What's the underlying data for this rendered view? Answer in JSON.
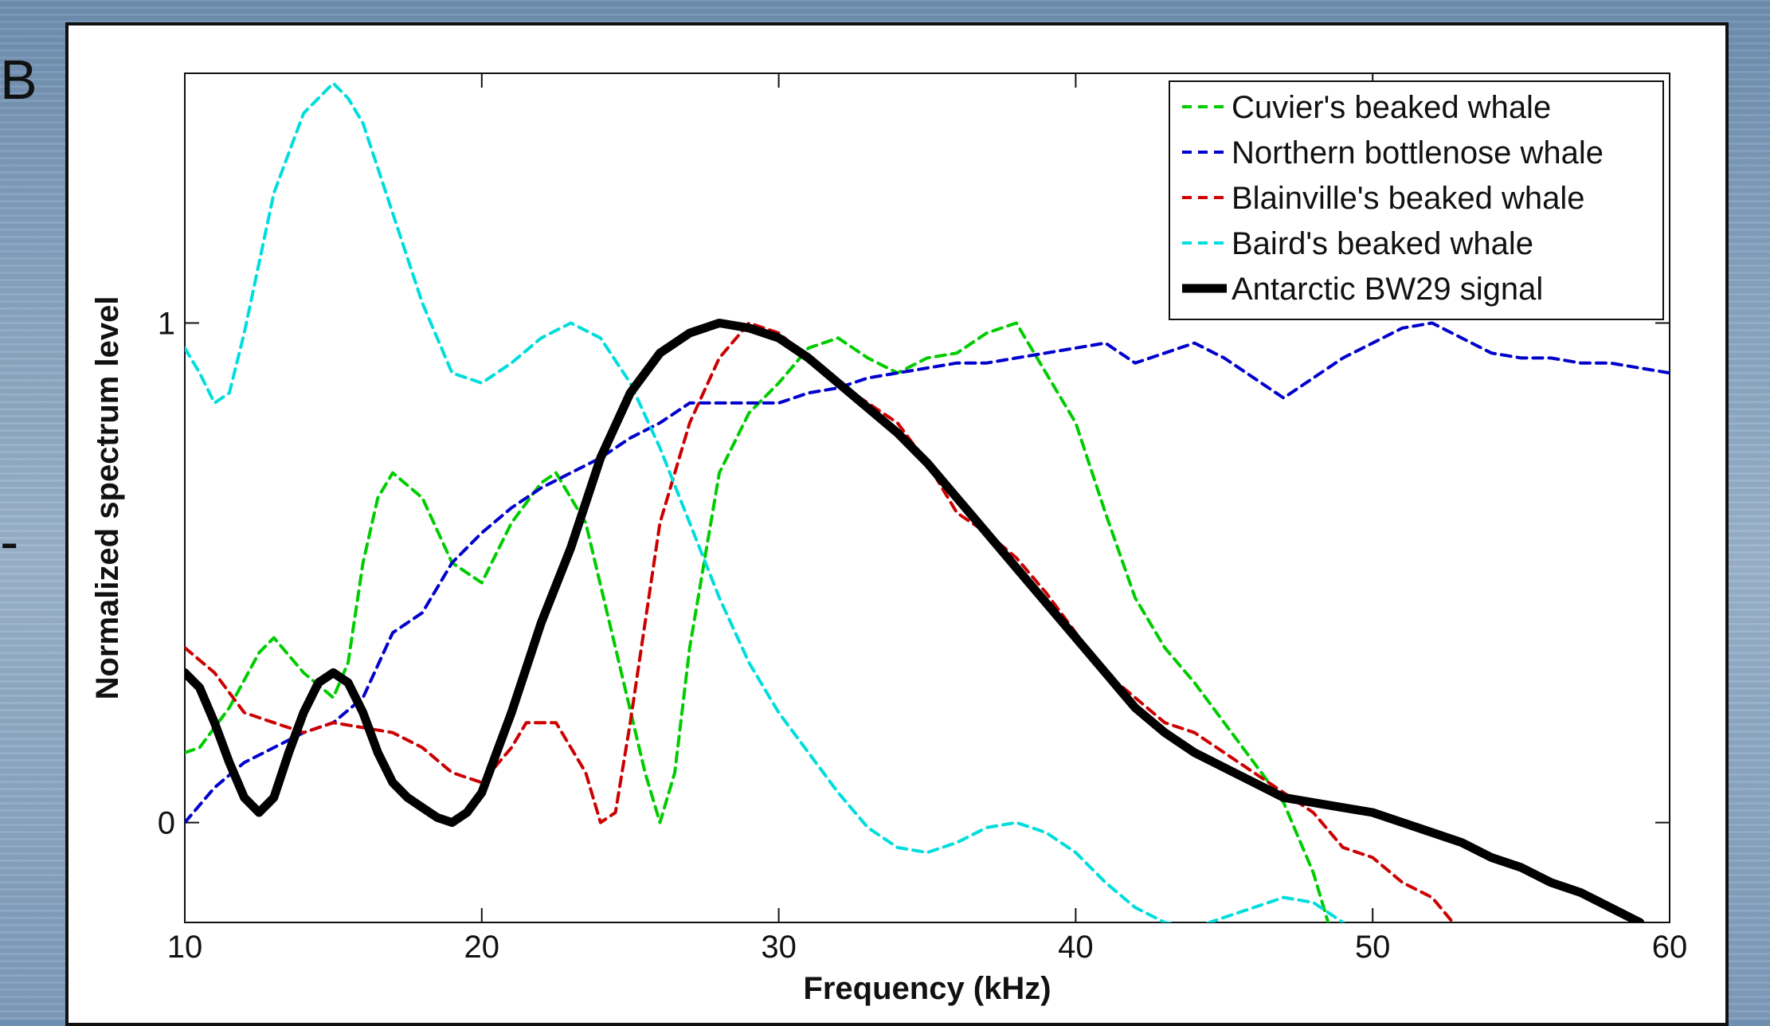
{
  "slide": {
    "left_glyphs": [
      "B",
      "-"
    ]
  },
  "chart_data": {
    "type": "line",
    "title": "",
    "xlabel": "Frequency (kHz)",
    "ylabel": "Normalized spectrum level",
    "xlim": [
      10,
      60
    ],
    "ylim": [
      -0.2,
      1.5
    ],
    "xticks": [
      10,
      20,
      30,
      40,
      50,
      60
    ],
    "yticks": [
      0,
      1
    ],
    "grid": false,
    "legend_position": "top-right",
    "series": [
      {
        "name": "Cuvier's beaked whale",
        "color": "#00cc00",
        "style": "dashed",
        "x": [
          10,
          10.5,
          11.5,
          12.5,
          13,
          14,
          15,
          15.5,
          16,
          16.5,
          17,
          18,
          19,
          20,
          21,
          22,
          22.5,
          23.5,
          24.5,
          25.5,
          26,
          26.5,
          27,
          28,
          29,
          30,
          31,
          32,
          33,
          34,
          35,
          36,
          37,
          38,
          39,
          40,
          41,
          42,
          43,
          44,
          45,
          46,
          47,
          48,
          48.5
        ],
        "y": [
          0.14,
          0.15,
          0.23,
          0.34,
          0.37,
          0.3,
          0.25,
          0.32,
          0.52,
          0.65,
          0.7,
          0.65,
          0.52,
          0.48,
          0.6,
          0.68,
          0.7,
          0.6,
          0.35,
          0.1,
          0.0,
          0.1,
          0.35,
          0.7,
          0.82,
          0.88,
          0.95,
          0.97,
          0.93,
          0.9,
          0.93,
          0.94,
          0.98,
          1.0,
          0.9,
          0.8,
          0.62,
          0.45,
          0.35,
          0.28,
          0.2,
          0.12,
          0.04,
          -0.1,
          -0.2
        ]
      },
      {
        "name": "Northern bottlenose whale",
        "color": "#0000cc",
        "style": "dashed",
        "x": [
          10,
          11,
          12,
          13,
          14,
          15,
          16,
          17,
          18,
          19,
          20,
          21,
          22,
          23,
          24,
          25,
          26,
          27,
          28,
          29,
          30,
          31,
          32,
          33,
          34,
          35,
          36,
          37,
          38,
          39,
          40,
          41,
          42,
          43,
          44,
          45,
          46,
          47,
          48,
          49,
          50,
          51,
          52,
          53,
          54,
          55,
          56,
          57,
          58,
          59,
          60
        ],
        "y": [
          0.0,
          0.07,
          0.12,
          0.15,
          0.18,
          0.2,
          0.25,
          0.38,
          0.42,
          0.52,
          0.58,
          0.63,
          0.67,
          0.7,
          0.73,
          0.77,
          0.8,
          0.84,
          0.84,
          0.84,
          0.84,
          0.86,
          0.87,
          0.89,
          0.9,
          0.91,
          0.92,
          0.92,
          0.93,
          0.94,
          0.95,
          0.96,
          0.92,
          0.94,
          0.96,
          0.93,
          0.89,
          0.85,
          0.89,
          0.93,
          0.96,
          0.99,
          1.0,
          0.97,
          0.94,
          0.93,
          0.93,
          0.92,
          0.92,
          0.91,
          0.9
        ]
      },
      {
        "name": "Blainville's beaked whale",
        "color": "#cc0000",
        "style": "dashed",
        "x": [
          10,
          11,
          12,
          13,
          14,
          15,
          16,
          17,
          18,
          19,
          20,
          21,
          21.5,
          22.5,
          23.5,
          24,
          24.5,
          25,
          25.5,
          26,
          27,
          28,
          29,
          30,
          31,
          32,
          33,
          34,
          35,
          36,
          37,
          38,
          39,
          40,
          41,
          42,
          43,
          44,
          45,
          46,
          47,
          48,
          49,
          50,
          51,
          52,
          52.7
        ],
        "y": [
          0.35,
          0.3,
          0.22,
          0.2,
          0.18,
          0.2,
          0.19,
          0.18,
          0.15,
          0.1,
          0.08,
          0.15,
          0.2,
          0.2,
          0.1,
          0.0,
          0.02,
          0.2,
          0.4,
          0.6,
          0.8,
          0.93,
          1.0,
          0.98,
          0.93,
          0.88,
          0.84,
          0.8,
          0.72,
          0.62,
          0.58,
          0.53,
          0.46,
          0.38,
          0.3,
          0.25,
          0.2,
          0.18,
          0.14,
          0.1,
          0.06,
          0.02,
          -0.05,
          -0.07,
          -0.12,
          -0.15,
          -0.2
        ]
      },
      {
        "name": "Baird's beaked whale",
        "color": "#00dddd",
        "style": "dashed",
        "x": [
          10,
          10.5,
          11,
          11.5,
          12,
          12.5,
          13,
          14,
          15,
          15.5,
          16,
          17,
          18,
          19,
          20,
          21,
          22,
          23,
          24,
          25,
          26,
          27,
          28,
          29,
          30,
          31,
          32,
          33,
          34,
          35,
          36,
          37,
          38,
          39,
          40,
          41,
          42,
          43,
          44,
          45,
          46,
          47,
          48,
          49
        ],
        "y": [
          0.95,
          0.9,
          0.84,
          0.86,
          0.98,
          1.12,
          1.26,
          1.42,
          1.48,
          1.45,
          1.4,
          1.22,
          1.04,
          0.9,
          0.88,
          0.92,
          0.97,
          1.0,
          0.97,
          0.88,
          0.75,
          0.6,
          0.45,
          0.32,
          0.22,
          0.14,
          0.06,
          -0.01,
          -0.05,
          -0.06,
          -0.04,
          -0.01,
          0.0,
          -0.02,
          -0.06,
          -0.12,
          -0.17,
          -0.2,
          -0.21,
          -0.19,
          -0.17,
          -0.15,
          -0.16,
          -0.2
        ]
      },
      {
        "name": "Antarctic BW29 signal",
        "color": "#000000",
        "style": "solid",
        "x": [
          10,
          10.5,
          11,
          11.5,
          12,
          12.5,
          13,
          13.5,
          14,
          14.5,
          15,
          15.5,
          16,
          16.5,
          17,
          17.5,
          18,
          18.5,
          19,
          19.5,
          20,
          20.5,
          21,
          22,
          23,
          24,
          25,
          26,
          27,
          28,
          29,
          30,
          31,
          32,
          33,
          34,
          35,
          36,
          37,
          38,
          39,
          40,
          41,
          42,
          43,
          44,
          45,
          46,
          47,
          48,
          49,
          50,
          51,
          52,
          53,
          54,
          55,
          56,
          57,
          58,
          59
        ],
        "y": [
          0.3,
          0.27,
          0.2,
          0.12,
          0.05,
          0.02,
          0.05,
          0.14,
          0.22,
          0.28,
          0.3,
          0.28,
          0.22,
          0.14,
          0.08,
          0.05,
          0.03,
          0.01,
          0.0,
          0.02,
          0.06,
          0.14,
          0.22,
          0.4,
          0.55,
          0.73,
          0.86,
          0.94,
          0.98,
          1.0,
          0.99,
          0.97,
          0.93,
          0.88,
          0.83,
          0.78,
          0.72,
          0.65,
          0.58,
          0.51,
          0.44,
          0.37,
          0.3,
          0.23,
          0.18,
          0.14,
          0.11,
          0.08,
          0.05,
          0.04,
          0.03,
          0.02,
          0.0,
          -0.02,
          -0.04,
          -0.07,
          -0.09,
          -0.12,
          -0.14,
          -0.17,
          -0.2
        ]
      }
    ]
  }
}
